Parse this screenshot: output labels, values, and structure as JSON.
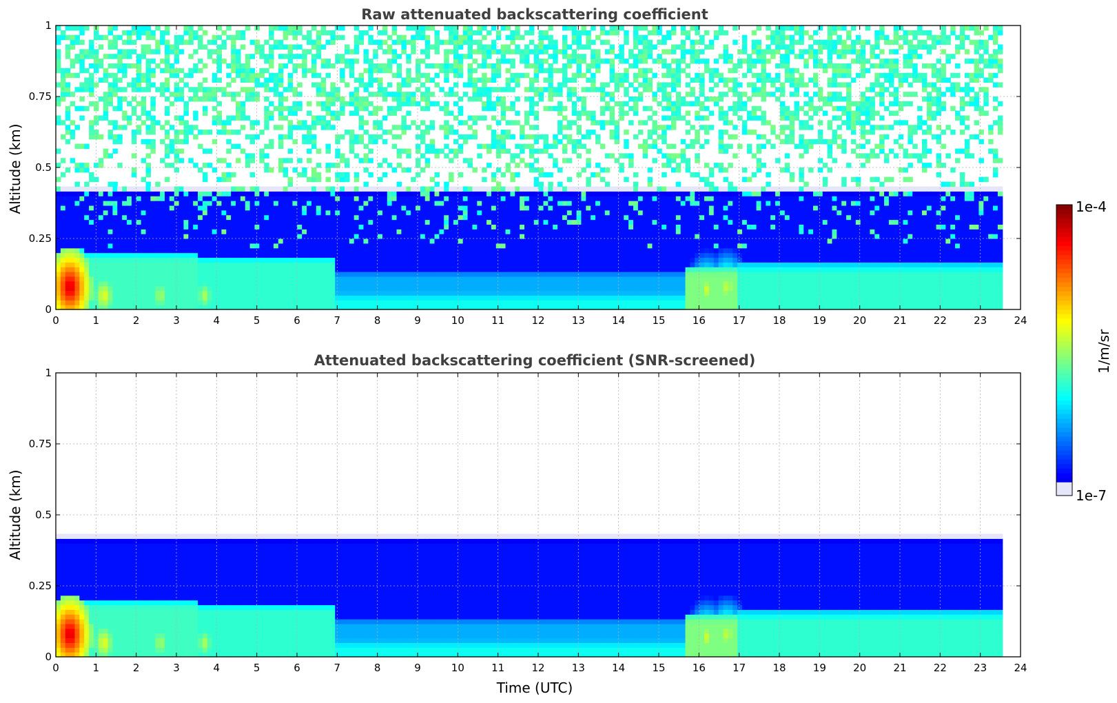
{
  "chart_data": [
    {
      "type": "heatmap",
      "title": "Raw attenuated backscattering coefficient",
      "xlabel": "",
      "ylabel": "Altitude (km)",
      "xlim": [
        0,
        24
      ],
      "ylim": [
        0,
        1
      ],
      "xticks": [
        "0",
        "1",
        "2",
        "3",
        "4",
        "5",
        "6",
        "7",
        "8",
        "9",
        "10",
        "11",
        "12",
        "13",
        "14",
        "15",
        "16",
        "17",
        "18",
        "19",
        "20",
        "21",
        "22",
        "23",
        "24"
      ],
      "yticks": [
        "0",
        "0.25",
        "0.5",
        "0.75",
        "1"
      ],
      "data_end_hour": 23.55,
      "grid": true,
      "noise": "high",
      "layers": [
        {
          "from": 0.0,
          "to": 23.55,
          "bottom": 0.0,
          "top": 0.06,
          "log10": -5.95
        },
        {
          "from": 0.0,
          "to": 3.5,
          "bottom": 0.0,
          "top": 0.2,
          "log10": -5.8
        },
        {
          "from": 3.5,
          "to": 7.0,
          "bottom": 0.0,
          "top": 0.19,
          "log10": -5.85
        },
        {
          "from": 7.0,
          "to": 15.7,
          "bottom": 0.0,
          "top": 0.14,
          "log10": -6.25
        },
        {
          "from": 15.7,
          "to": 17.0,
          "bottom": 0.0,
          "top": 0.15,
          "log10": -5.6
        },
        {
          "from": 17.0,
          "to": 23.55,
          "bottom": 0.0,
          "top": 0.16,
          "log10": -5.85
        },
        {
          "from": 0.0,
          "to": 23.55,
          "bottom": 0.0,
          "top": 0.43,
          "log10": -6.75
        }
      ],
      "hotspots": [
        {
          "x": 0.35,
          "y": 0.08,
          "log10": -4.2
        },
        {
          "x": 1.2,
          "y": 0.05,
          "log10": -5.2
        },
        {
          "x": 2.6,
          "y": 0.05,
          "log10": -5.4
        },
        {
          "x": 3.7,
          "y": 0.05,
          "log10": -5.4
        },
        {
          "x": 16.2,
          "y": 0.07,
          "log10": -5.3
        },
        {
          "x": 16.7,
          "y": 0.08,
          "log10": -5.3
        }
      ]
    },
    {
      "type": "heatmap",
      "title": "Attenuated backscattering coefficient (SNR-screened)",
      "xlabel": "Time (UTC)",
      "ylabel": "Altitude (km)",
      "xlim": [
        0,
        24
      ],
      "ylim": [
        0,
        1
      ],
      "xticks": [
        "0",
        "1",
        "2",
        "3",
        "4",
        "5",
        "6",
        "7",
        "8",
        "9",
        "10",
        "11",
        "12",
        "13",
        "14",
        "15",
        "16",
        "17",
        "18",
        "19",
        "20",
        "21",
        "22",
        "23",
        "24"
      ],
      "yticks": [
        "0",
        "0.25",
        "0.5",
        "0.75",
        "1"
      ],
      "data_end_hour": 23.55,
      "grid": true,
      "noise": "low",
      "layers": [
        {
          "from": 0.0,
          "to": 23.55,
          "bottom": 0.0,
          "top": 0.06,
          "log10": -5.95
        },
        {
          "from": 0.0,
          "to": 3.5,
          "bottom": 0.0,
          "top": 0.2,
          "log10": -5.8
        },
        {
          "from": 3.5,
          "to": 7.0,
          "bottom": 0.0,
          "top": 0.19,
          "log10": -5.85
        },
        {
          "from": 7.0,
          "to": 15.7,
          "bottom": 0.0,
          "top": 0.14,
          "log10": -6.25
        },
        {
          "from": 15.7,
          "to": 17.0,
          "bottom": 0.0,
          "top": 0.15,
          "log10": -5.6
        },
        {
          "from": 17.0,
          "to": 23.55,
          "bottom": 0.0,
          "top": 0.16,
          "log10": -5.85
        },
        {
          "from": 0.0,
          "to": 23.55,
          "bottom": 0.0,
          "top": 0.43,
          "log10": -6.75
        }
      ],
      "hotspots": [
        {
          "x": 0.35,
          "y": 0.08,
          "log10": -4.2
        },
        {
          "x": 1.2,
          "y": 0.05,
          "log10": -5.2
        },
        {
          "x": 2.6,
          "y": 0.05,
          "log10": -5.4
        },
        {
          "x": 3.7,
          "y": 0.05,
          "log10": -5.4
        },
        {
          "x": 16.2,
          "y": 0.07,
          "log10": -5.3
        },
        {
          "x": 16.7,
          "y": 0.08,
          "log10": -5.3
        }
      ]
    }
  ],
  "colorbar": {
    "label": "1/m/sr",
    "max_label": "1e-4",
    "min_label": "1e-7",
    "min_log10": -7,
    "max_log10": -4,
    "colormap": "jet",
    "min_color": "#e6e6fa"
  }
}
